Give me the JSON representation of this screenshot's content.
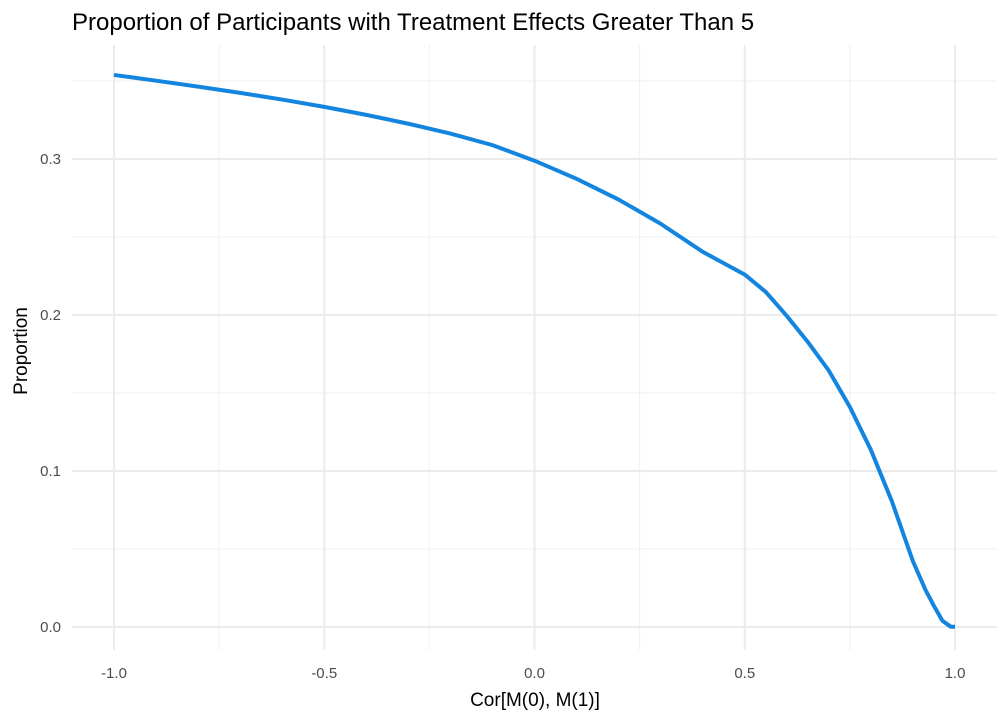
{
  "chart_data": {
    "type": "line",
    "title": "Proportion of Participants with Treatment Effects Greater Than 5",
    "xlabel": "Cor[M(0), M(1)]",
    "ylabel": "Proportion",
    "xlim": [
      -1.0,
      1.0
    ],
    "ylim": [
      0.0,
      0.355
    ],
    "x_ticks": [
      "-1.0",
      "-0.5",
      "0.0",
      "0.5",
      "1.0"
    ],
    "y_ticks": [
      "0.0",
      "0.1",
      "0.2",
      "0.3"
    ],
    "grid": true,
    "line_color": "#1385df",
    "x": [
      -1.0,
      -0.9,
      -0.8,
      -0.7,
      -0.6,
      -0.5,
      -0.4,
      -0.3,
      -0.2,
      -0.1,
      0.0,
      0.1,
      0.2,
      0.3,
      0.4,
      0.5,
      0.55,
      0.6,
      0.65,
      0.7,
      0.75,
      0.8,
      0.85,
      0.9,
      0.93,
      0.95,
      0.97,
      0.99,
      1.0
    ],
    "y": [
      0.3539,
      0.3502,
      0.3464,
      0.3424,
      0.3381,
      0.3334,
      0.3283,
      0.3226,
      0.3163,
      0.3089,
      0.2989,
      0.2873,
      0.274,
      0.2585,
      0.2405,
      0.2259,
      0.2148,
      0.1994,
      0.1827,
      0.1643,
      0.141,
      0.1135,
      0.0805,
      0.0421,
      0.0237,
      0.0135,
      0.004,
      0.0002,
      0.0002
    ]
  }
}
